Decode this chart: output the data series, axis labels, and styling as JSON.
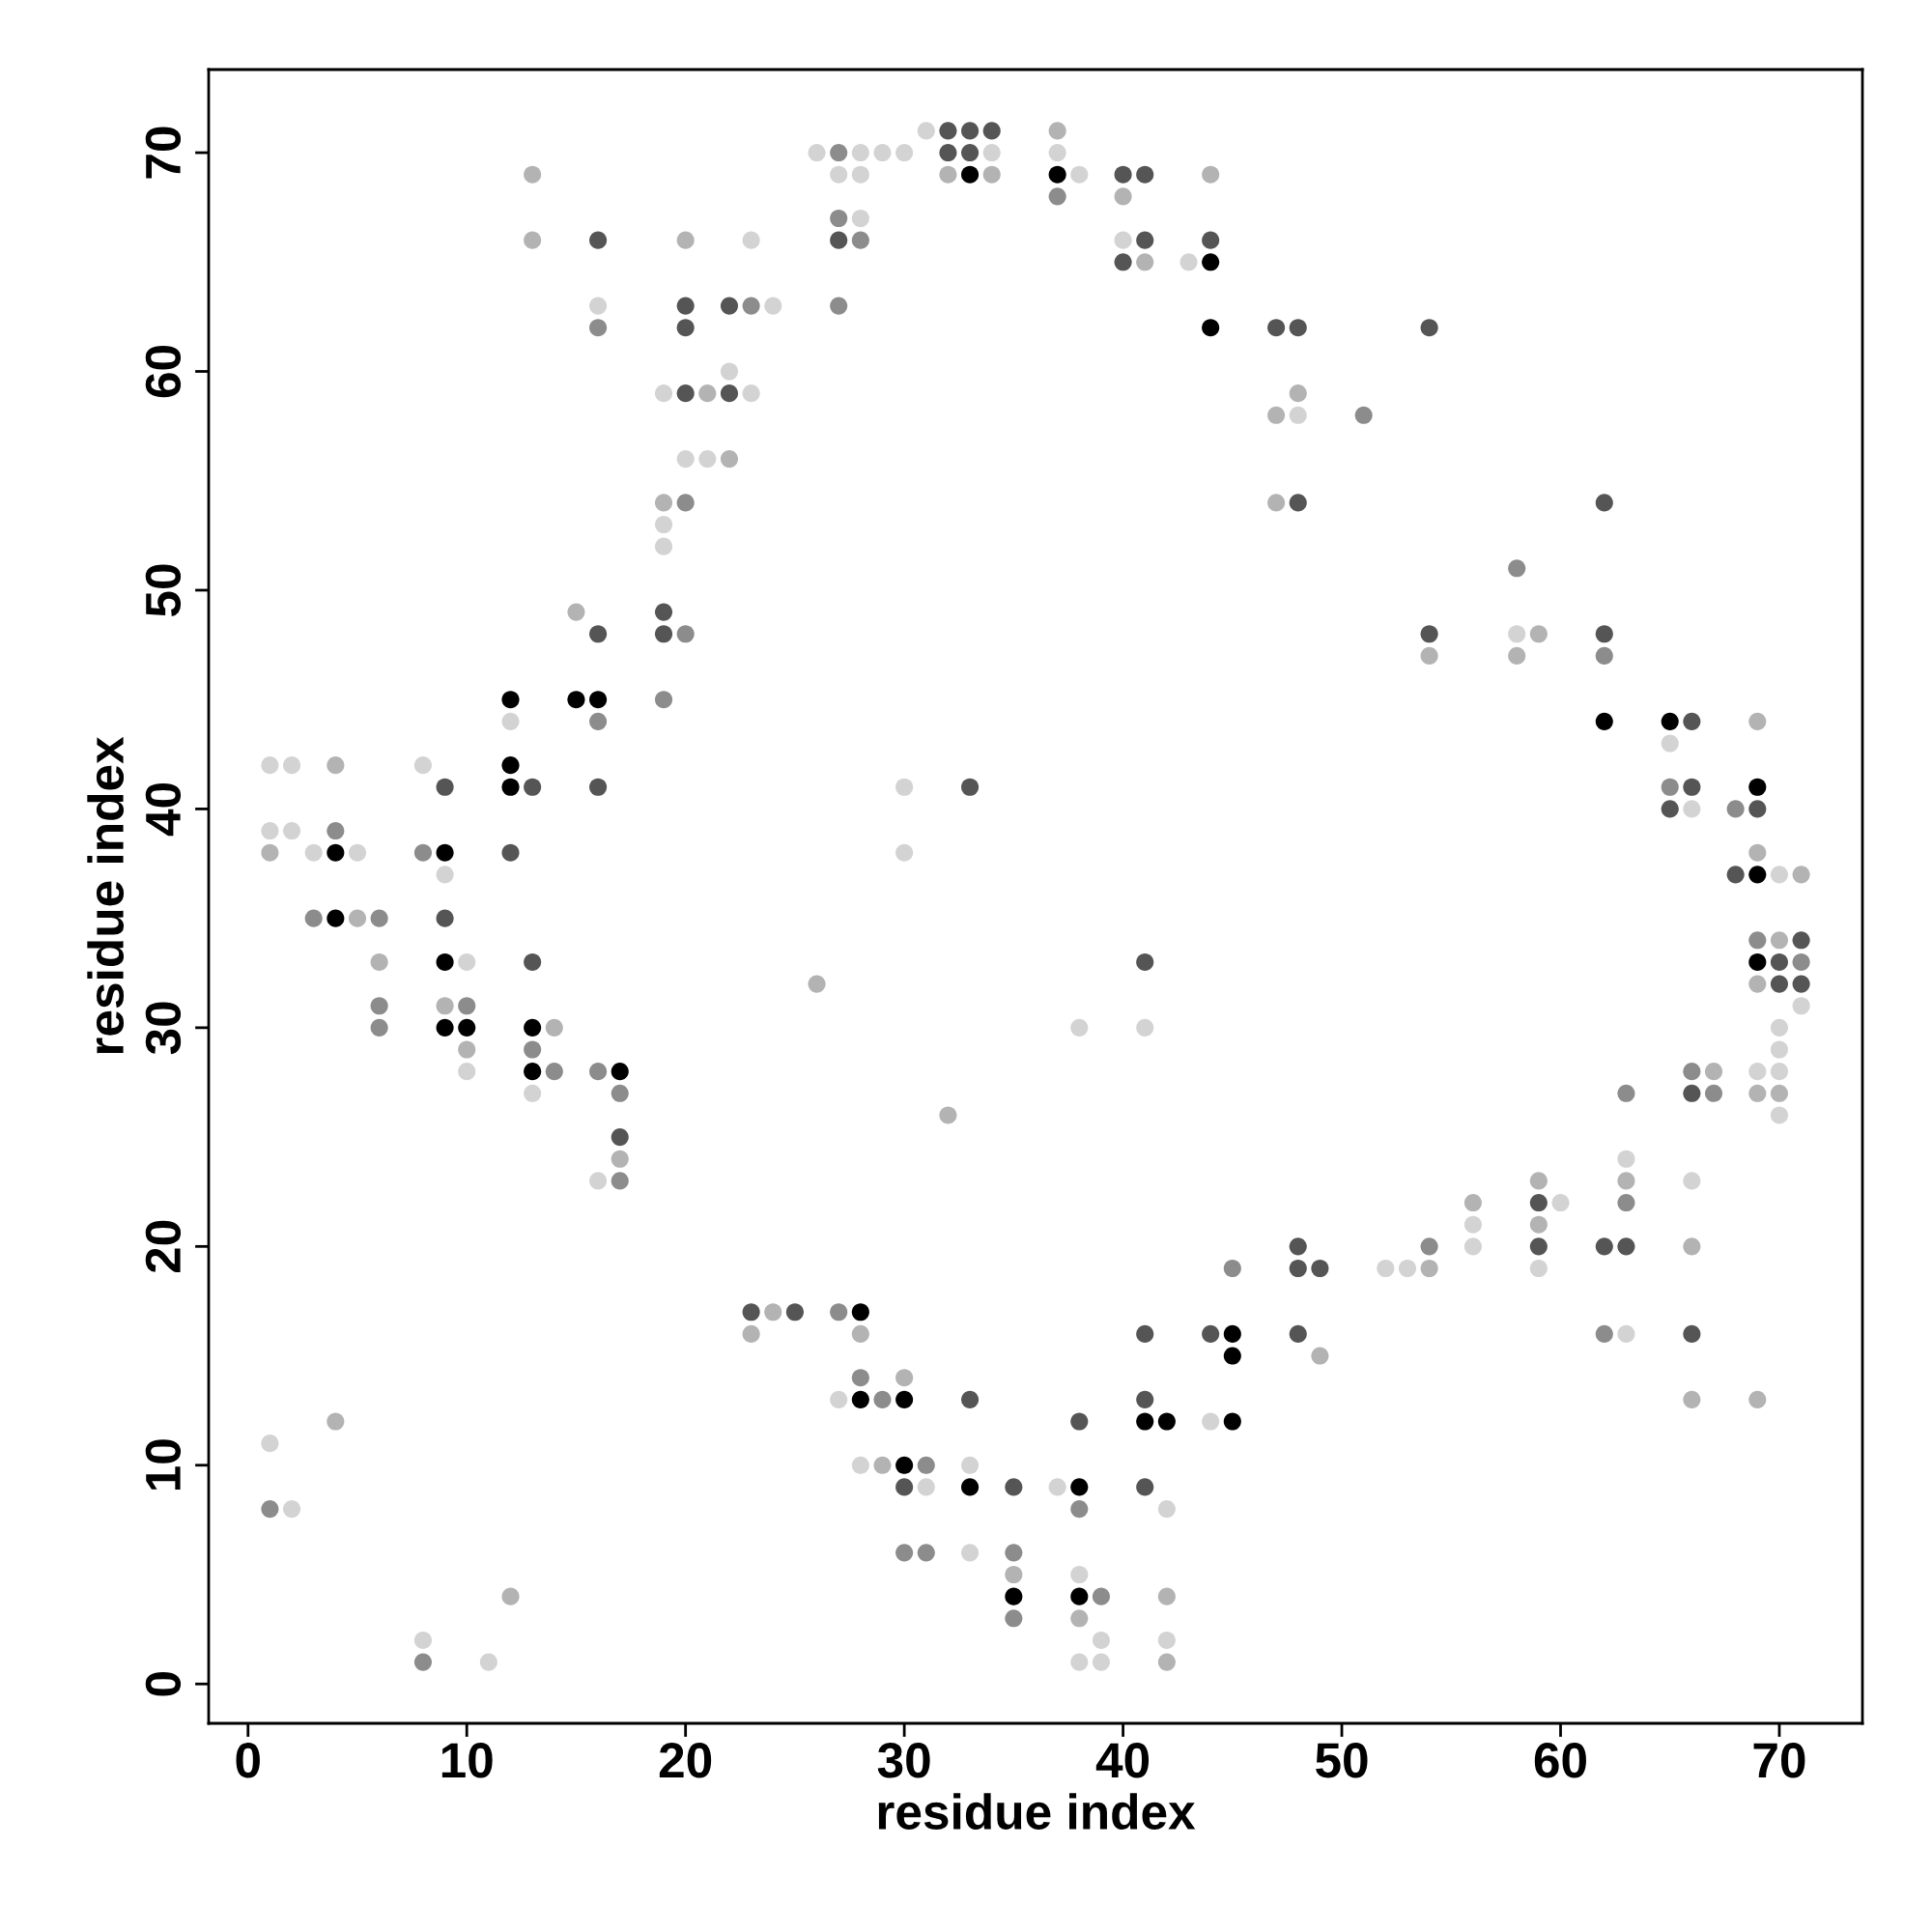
{
  "chart_data": {
    "type": "scatter",
    "xlabel": "residue index",
    "ylabel": "residue index",
    "xlim": [
      -1.8,
      73.8
    ],
    "ylim": [
      -1.8,
      73.8
    ],
    "xticks": [
      0,
      10,
      20,
      30,
      40,
      50,
      60,
      70
    ],
    "yticks": [
      0,
      10,
      20,
      30,
      40,
      50,
      60,
      70
    ],
    "grid": false,
    "marker": "circle",
    "series": [
      {
        "x": [
          1,
          1,
          1,
          1,
          1,
          2,
          2,
          2,
          3,
          3,
          4,
          4,
          4,
          4,
          4,
          5,
          5,
          6,
          6,
          6,
          6,
          8,
          8,
          8,
          8,
          9,
          9,
          9,
          9,
          9,
          9,
          9,
          10,
          10,
          10,
          10,
          10,
          11,
          12,
          12,
          12,
          12,
          12,
          12,
          13,
          13,
          13,
          13,
          13,
          13,
          13,
          13,
          14,
          14,
          15,
          15,
          16,
          16,
          16,
          16,
          16,
          16,
          16,
          16,
          16,
          17,
          17,
          17,
          17,
          17,
          19,
          19,
          19,
          19,
          19,
          19,
          19,
          20,
          20,
          20,
          20,
          20,
          20,
          20,
          21,
          21,
          22,
          22,
          22,
          22,
          23,
          23,
          23,
          23,
          23,
          24,
          24,
          25,
          26,
          26,
          27,
          27,
          27,
          27,
          27,
          27,
          27,
          28,
          28,
          28,
          28,
          28,
          28,
          28,
          28,
          28,
          29,
          29,
          29,
          30,
          30,
          30,
          30,
          30,
          30,
          30,
          30,
          31,
          31,
          31,
          31,
          32,
          32,
          32,
          32,
          33,
          33,
          33,
          33,
          33,
          33,
          33,
          33,
          34,
          34,
          34,
          35,
          35,
          35,
          35,
          35,
          37,
          37,
          37,
          37,
          37,
          38,
          38,
          38,
          38,
          38,
          38,
          38,
          38,
          38,
          39,
          39,
          39,
          40,
          40,
          40,
          40,
          41,
          41,
          41,
          41,
          41,
          41,
          41,
          41,
          41,
          42,
          42,
          42,
          42,
          42,
          43,
          44,
          44,
          44,
          44,
          44,
          44,
          45,
          45,
          45,
          45,
          47,
          47,
          47,
          48,
          48,
          48,
          48,
          48,
          48,
          48,
          49,
          49,
          51,
          52,
          53,
          54,
          54,
          54,
          54,
          54,
          56,
          56,
          56,
          58,
          58,
          58,
          59,
          59,
          59,
          59,
          59,
          59,
          60,
          62,
          62,
          62,
          62,
          62,
          62,
          63,
          63,
          63,
          63,
          63,
          63,
          65,
          65,
          65,
          65,
          66,
          66,
          66,
          66,
          66,
          66,
          66,
          66,
          66,
          67,
          67,
          68,
          68,
          69,
          69,
          69,
          69,
          69,
          69,
          69,
          69,
          69,
          69,
          69,
          70,
          70,
          70,
          70,
          70,
          70,
          70,
          70,
          70,
          71,
          71,
          71,
          71,
          71
        ],
        "values": [
          42,
          39,
          38,
          11,
          8,
          42,
          39,
          8,
          38,
          35,
          42,
          39,
          38,
          35,
          12,
          38,
          35,
          35,
          33,
          31,
          30,
          42,
          38,
          2,
          1,
          41,
          38,
          37,
          35,
          33,
          31,
          30,
          33,
          31,
          30,
          29,
          28,
          1,
          45,
          44,
          42,
          41,
          38,
          4,
          69,
          66,
          41,
          33,
          30,
          29,
          28,
          27,
          30,
          28,
          49,
          45,
          66,
          63,
          62,
          48,
          45,
          44,
          41,
          28,
          23,
          28,
          27,
          25,
          24,
          23,
          59,
          54,
          53,
          52,
          49,
          48,
          45,
          66,
          63,
          62,
          59,
          56,
          54,
          48,
          59,
          56,
          63,
          60,
          59,
          56,
          66,
          63,
          59,
          17,
          16,
          63,
          17,
          17,
          70,
          32,
          70,
          69,
          67,
          66,
          63,
          17,
          13,
          70,
          69,
          67,
          66,
          17,
          16,
          14,
          13,
          10,
          70,
          13,
          10,
          70,
          41,
          38,
          14,
          13,
          10,
          9,
          6,
          71,
          10,
          9,
          6,
          71,
          70,
          69,
          26,
          71,
          70,
          69,
          41,
          13,
          10,
          9,
          6,
          71,
          70,
          69,
          9,
          6,
          5,
          4,
          3,
          71,
          70,
          69,
          68,
          9,
          69,
          30,
          12,
          9,
          8,
          5,
          4,
          3,
          1,
          4,
          2,
          1,
          69,
          68,
          66,
          65,
          69,
          66,
          65,
          33,
          30,
          16,
          13,
          12,
          9,
          12,
          8,
          4,
          2,
          1,
          65,
          69,
          66,
          65,
          62,
          16,
          12,
          19,
          16,
          15,
          12,
          62,
          58,
          54,
          62,
          59,
          58,
          54,
          20,
          19,
          16,
          19,
          15,
          58,
          19,
          19,
          62,
          48,
          47,
          20,
          19,
          22,
          21,
          20,
          51,
          48,
          47,
          48,
          23,
          22,
          21,
          20,
          19,
          22,
          54,
          48,
          47,
          44,
          20,
          16,
          27,
          24,
          23,
          22,
          20,
          16,
          44,
          43,
          41,
          40,
          44,
          41,
          40,
          28,
          27,
          23,
          20,
          16,
          13,
          28,
          27,
          40,
          37,
          44,
          41,
          40,
          38,
          37,
          34,
          33,
          32,
          28,
          27,
          13,
          37,
          34,
          33,
          32,
          30,
          29,
          28,
          27,
          26,
          37,
          34,
          33,
          32,
          31
        ],
        "colors": [
          "#d3d3d3",
          "#d3d3d3",
          "#b3b3b3",
          "#d3d3d3",
          "#8c8c8c",
          "#d3d3d3",
          "#d3d3d3",
          "#d3d3d3",
          "#d3d3d3",
          "#8c8c8c",
          "#b3b3b3",
          "#8c8c8c",
          "#000000",
          "#000000",
          "#b3b3b3",
          "#d3d3d3",
          "#b3b3b3",
          "#8c8c8c",
          "#b3b3b3",
          "#8c8c8c",
          "#8c8c8c",
          "#d3d3d3",
          "#8c8c8c",
          "#d3d3d3",
          "#8c8c8c",
          "#555555",
          "#000000",
          "#d3d3d3",
          "#555555",
          "#000000",
          "#b3b3b3",
          "#000000",
          "#d3d3d3",
          "#8c8c8c",
          "#000000",
          "#b3b3b3",
          "#d3d3d3",
          "#d3d3d3",
          "#000000",
          "#d3d3d3",
          "#000000",
          "#000000",
          "#555555",
          "#b3b3b3",
          "#b3b3b3",
          "#b3b3b3",
          "#555555",
          "#555555",
          "#000000",
          "#8c8c8c",
          "#000000",
          "#d3d3d3",
          "#b3b3b3",
          "#8c8c8c",
          "#b3b3b3",
          "#000000",
          "#555555",
          "#d3d3d3",
          "#8c8c8c",
          "#555555",
          "#000000",
          "#8c8c8c",
          "#555555",
          "#8c8c8c",
          "#d3d3d3",
          "#000000",
          "#8c8c8c",
          "#555555",
          "#b3b3b3",
          "#8c8c8c",
          "#d3d3d3",
          "#b3b3b3",
          "#d3d3d3",
          "#d3d3d3",
          "#555555",
          "#555555",
          "#8c8c8c",
          "#b3b3b3",
          "#555555",
          "#555555",
          "#555555",
          "#d3d3d3",
          "#8c8c8c",
          "#8c8c8c",
          "#b3b3b3",
          "#d3d3d3",
          "#555555",
          "#d3d3d3",
          "#555555",
          "#b3b3b3",
          "#d3d3d3",
          "#8c8c8c",
          "#d3d3d3",
          "#555555",
          "#b3b3b3",
          "#d3d3d3",
          "#b3b3b3",
          "#555555",
          "#d3d3d3",
          "#b3b3b3",
          "#8c8c8c",
          "#d3d3d3",
          "#8c8c8c",
          "#555555",
          "#8c8c8c",
          "#8c8c8c",
          "#d3d3d3",
          "#d3d3d3",
          "#d3d3d3",
          "#d3d3d3",
          "#8c8c8c",
          "#000000",
          "#b3b3b3",
          "#8c8c8c",
          "#000000",
          "#d3d3d3",
          "#d3d3d3",
          "#8c8c8c",
          "#b3b3b3",
          "#d3d3d3",
          "#d3d3d3",
          "#d3d3d3",
          "#b3b3b3",
          "#000000",
          "#000000",
          "#555555",
          "#8c8c8c",
          "#d3d3d3",
          "#8c8c8c",
          "#d3d3d3",
          "#8c8c8c",
          "#555555",
          "#555555",
          "#b3b3b3",
          "#b3b3b3",
          "#555555",
          "#555555",
          "#000000",
          "#555555",
          "#555555",
          "#d3d3d3",
          "#000000",
          "#d3d3d3",
          "#555555",
          "#d3d3d3",
          "#b3b3b3",
          "#555555",
          "#8c8c8c",
          "#b3b3b3",
          "#000000",
          "#8c8c8c",
          "#b3b3b3",
          "#d3d3d3",
          "#000000",
          "#8c8c8c",
          "#d3d3d3",
          "#d3d3d3",
          "#d3d3d3",
          "#555555",
          "#000000",
          "#8c8c8c",
          "#d3d3d3",
          "#000000",
          "#b3b3b3",
          "#d3d3d3",
          "#8c8c8c",
          "#d3d3d3",
          "#d3d3d3",
          "#555555",
          "#b3b3b3",
          "#d3d3d3",
          "#555555",
          "#555555",
          "#555555",
          "#b3b3b3",
          "#555555",
          "#d3d3d3",
          "#555555",
          "#555555",
          "#000000",
          "#555555",
          "#000000",
          "#d3d3d3",
          "#b3b3b3",
          "#d3d3d3",
          "#b3b3b3",
          "#d3d3d3",
          "#b3b3b3",
          "#555555",
          "#000000",
          "#000000",
          "#555555",
          "#d3d3d3",
          "#8c8c8c",
          "#000000",
          "#000000",
          "#000000",
          "#555555",
          "#b3b3b3",
          "#b3b3b3",
          "#555555",
          "#b3b3b3",
          "#d3d3d3",
          "#555555",
          "#555555",
          "#555555",
          "#555555",
          "#555555",
          "#b3b3b3",
          "#8c8c8c",
          "#d3d3d3",
          "#d3d3d3",
          "#555555",
          "#555555",
          "#b3b3b3",
          "#8c8c8c",
          "#b3b3b3",
          "#b3b3b3",
          "#d3d3d3",
          "#d3d3d3",
          "#8c8c8c",
          "#d3d3d3",
          "#b3b3b3",
          "#b3b3b3",
          "#b3b3b3",
          "#555555",
          "#b3b3b3",
          "#555555",
          "#d3d3d3",
          "#d3d3d3",
          "#555555",
          "#555555",
          "#8c8c8c",
          "#000000",
          "#555555",
          "#8c8c8c",
          "#8c8c8c",
          "#d3d3d3",
          "#b3b3b3",
          "#8c8c8c",
          "#555555",
          "#d3d3d3",
          "#000000",
          "#d3d3d3",
          "#8c8c8c",
          "#555555",
          "#555555",
          "#555555",
          "#d3d3d3",
          "#8c8c8c",
          "#555555",
          "#d3d3d3",
          "#b3b3b3",
          "#555555",
          "#b3b3b3",
          "#b3b3b3",
          "#8c8c8c",
          "#8c8c8c",
          "#555555",
          "#b3b3b3",
          "#000000",
          "#555555",
          "#b3b3b3",
          "#000000",
          "#8c8c8c",
          "#000000",
          "#b3b3b3",
          "#d3d3d3",
          "#b3b3b3",
          "#b3b3b3",
          "#d3d3d3",
          "#b3b3b3",
          "#555555",
          "#555555",
          "#d3d3d3",
          "#d3d3d3",
          "#d3d3d3",
          "#b3b3b3",
          "#d3d3d3",
          "#b3b3b3",
          "#555555",
          "#8c8c8c",
          "#555555",
          "#d3d3d3"
        ]
      }
    ]
  }
}
